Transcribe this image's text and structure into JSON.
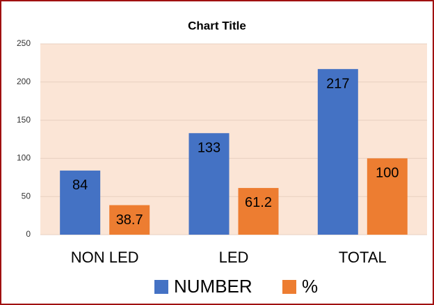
{
  "chart_data": {
    "type": "bar",
    "title": "Chart Title",
    "categories": [
      "NON LED",
      "LED",
      "TOTAL"
    ],
    "series": [
      {
        "name": "NUMBER",
        "color": "#4472c4",
        "values": [
          84,
          133,
          217
        ]
      },
      {
        "name": "%",
        "color": "#ed7d31",
        "values": [
          38.7,
          61.2,
          100
        ]
      }
    ],
    "ylim": [
      0,
      250
    ],
    "yticks": [
      0,
      50,
      100,
      150,
      200,
      250
    ],
    "grid": true,
    "legend": "bottom"
  }
}
